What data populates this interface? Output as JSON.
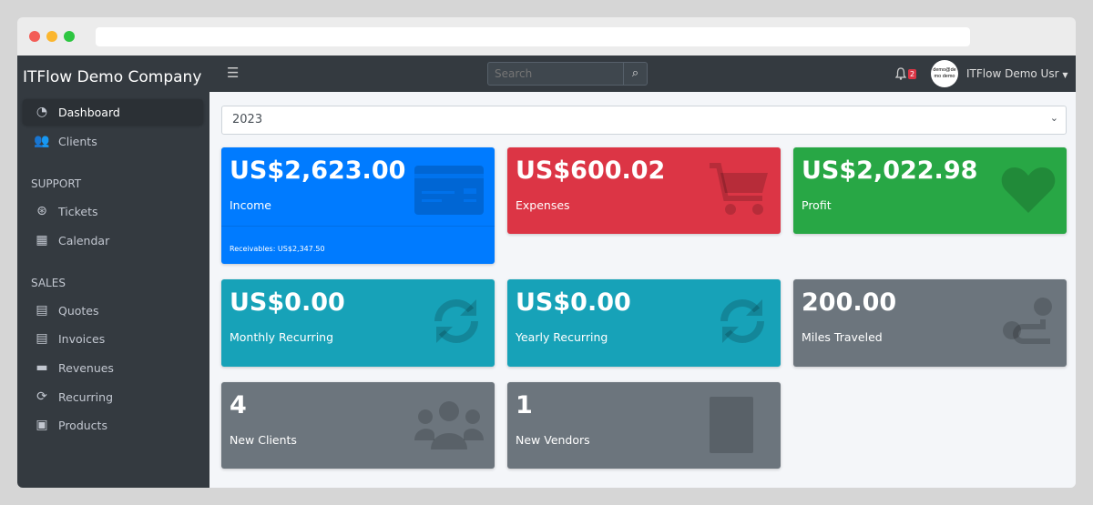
{
  "colors": {
    "blue": "#007bff",
    "red": "#dc3545",
    "green": "#28a745",
    "teal": "#17a2b8",
    "gray": "#6c757d",
    "sidebar": "#343a40"
  },
  "sidebar": {
    "brand": "ITFlow Demo Company",
    "items": [
      {
        "label": "Dashboard",
        "icon": "tachometer-icon"
      },
      {
        "label": "Clients",
        "icon": "users-icon"
      }
    ],
    "support_header": "SUPPORT",
    "support": [
      {
        "label": "Tickets",
        "icon": "life-ring-icon"
      },
      {
        "label": "Calendar",
        "icon": "calendar-icon"
      }
    ],
    "sales_header": "SALES",
    "sales": [
      {
        "label": "Quotes",
        "icon": "file-icon"
      },
      {
        "label": "Invoices",
        "icon": "invoice-icon"
      },
      {
        "label": "Revenues",
        "icon": "credit-card-icon"
      },
      {
        "label": "Recurring",
        "icon": "sync-icon"
      },
      {
        "label": "Products",
        "icon": "box-icon"
      }
    ]
  },
  "topbar": {
    "search_placeholder": "Search",
    "notifications": "2",
    "avatar_text": "demo@demo demo",
    "user": "ITFlow Demo Usr"
  },
  "year": "2023",
  "cards": [
    {
      "value": "US$2,623.00",
      "label": "Income",
      "footer": "Receivables: US$2,347.50",
      "icon": "credit-card-icon"
    },
    {
      "value": "US$600.02",
      "label": "Expenses",
      "icon": "shopping-cart-icon"
    },
    {
      "value": "US$2,022.98",
      "label": "Profit",
      "icon": "heart-icon"
    },
    {
      "value": "US$0.00",
      "label": "Monthly Recurring",
      "icon": "sync-icon"
    },
    {
      "value": "US$0.00",
      "label": "Yearly Recurring",
      "icon": "sync-icon"
    },
    {
      "value": "200.00",
      "label": "Miles Traveled",
      "icon": "route-icon"
    },
    {
      "value": "4",
      "label": "New Clients",
      "icon": "users-icon"
    },
    {
      "value": "1",
      "label": "New Vendors",
      "icon": "building-icon"
    }
  ]
}
